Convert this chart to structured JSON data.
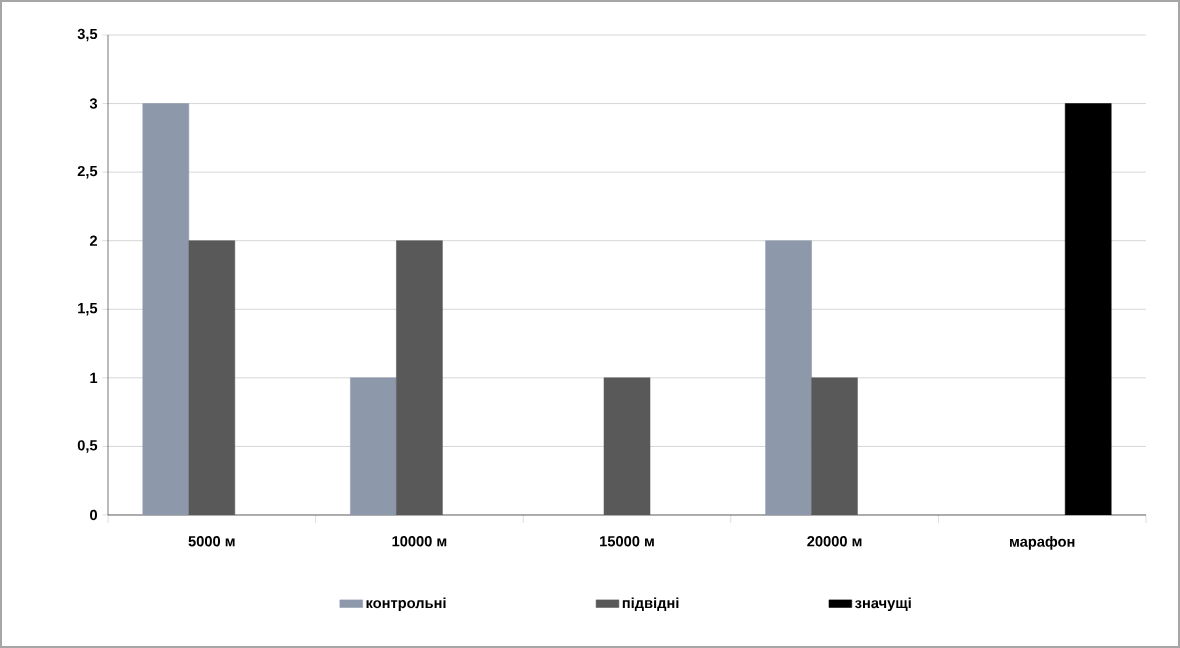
{
  "chart_data": {
    "type": "bar",
    "categories": [
      "5000 м",
      "10000 м",
      "15000 м",
      "20000 м",
      "марафон"
    ],
    "series": [
      {
        "name": "контрольні",
        "color": "#8e98ab",
        "values": [
          3,
          1,
          null,
          2,
          null
        ]
      },
      {
        "name": "підвідні",
        "color": "#595959",
        "values": [
          2,
          2,
          1,
          1,
          null
        ]
      },
      {
        "name": "значущі",
        "color": "#000000",
        "values": [
          null,
          null,
          null,
          null,
          3
        ]
      }
    ],
    "ylim": [
      0,
      3.5
    ],
    "yticks": [
      0,
      {
        "value": 0.5,
        "label": "0,5"
      },
      1,
      {
        "value": 1.5,
        "label": "1,5"
      },
      2,
      {
        "value": 2.5,
        "label": "2,5"
      },
      3,
      {
        "value": 3.5,
        "label": "3,5"
      }
    ],
    "grid": "y",
    "legend": "bottom"
  }
}
